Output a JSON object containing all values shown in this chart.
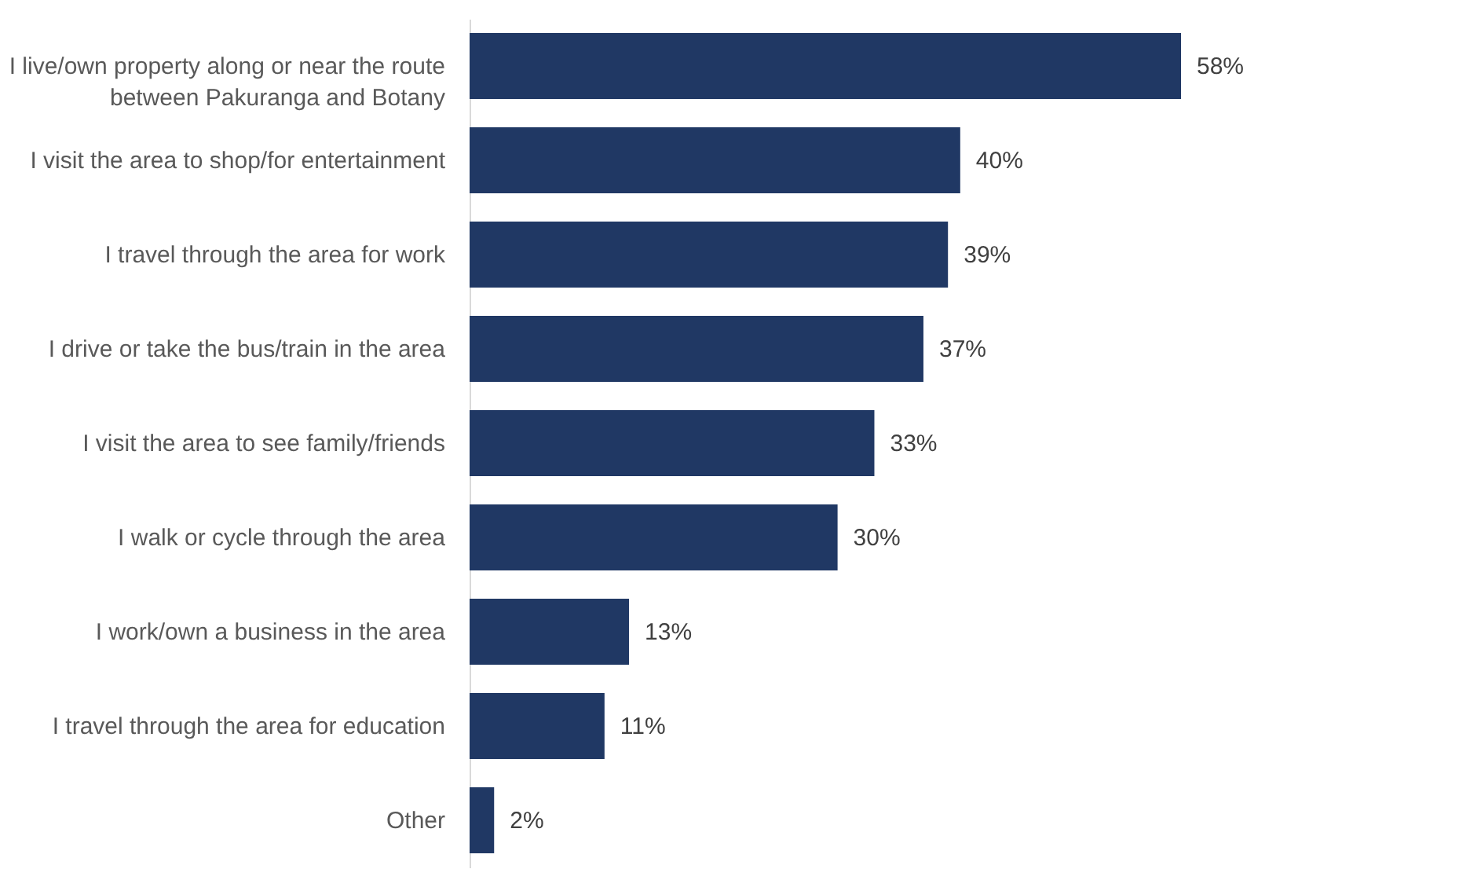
{
  "chart_data": {
    "type": "bar",
    "orientation": "horizontal",
    "categories": [
      "I live/own property along or near the route between Pakuranga and Botany",
      "I visit the area to shop/for entertainment",
      "I travel through the area for work",
      "I drive or take the bus/train in the area",
      "I visit the area to see family/friends",
      "I walk or cycle through the area",
      "I work/own a business in the area",
      "I travel through the area for education",
      "Other"
    ],
    "values": [
      58,
      40,
      39,
      37,
      33,
      30,
      13,
      11,
      2
    ],
    "value_labels": [
      "58%",
      "40%",
      "39%",
      "37%",
      "33%",
      "30%",
      "13%",
      "11%",
      "2%"
    ],
    "color": "#203864",
    "grid": false,
    "tick_labels": "y"
  }
}
